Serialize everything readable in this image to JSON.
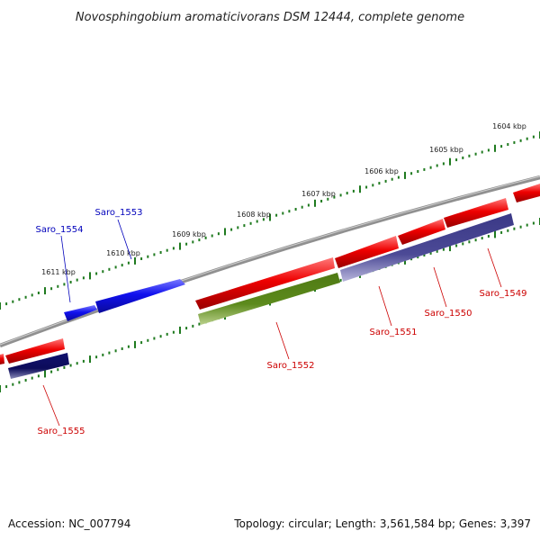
{
  "title": "Novosphingobium aromaticivorans DSM 12444, complete genome",
  "footer": {
    "accession": "Accession: NC_007794",
    "summary": "Topology: circular; Length: 3,561,584 bp; Genes: 3,397"
  },
  "ticks": [
    "1604 kbp",
    "1605 kbp",
    "1606 kbp",
    "1607 kbp",
    "1608 kbp",
    "1609 kbp",
    "1610 kbp",
    "1611 kbp"
  ],
  "genes": {
    "saro_1549": "Saro_1549",
    "saro_1550": "Saro_1550",
    "saro_1551": "Saro_1551",
    "saro_1552": "Saro_1552",
    "saro_1553": "Saro_1553",
    "saro_1554": "Saro_1554",
    "saro_1555": "Saro_1555"
  },
  "colors": {
    "backbone": "#888888",
    "tick": "#1f7a1f",
    "red_gene": "#ee0000",
    "blue_gene": "#1010ee",
    "navy_gene": "#10106e",
    "slate_gene": "#4c4a96",
    "olive_gene": "#5c8a1c",
    "label_red": "#cc0000",
    "label_blue": "#0000bb"
  }
}
